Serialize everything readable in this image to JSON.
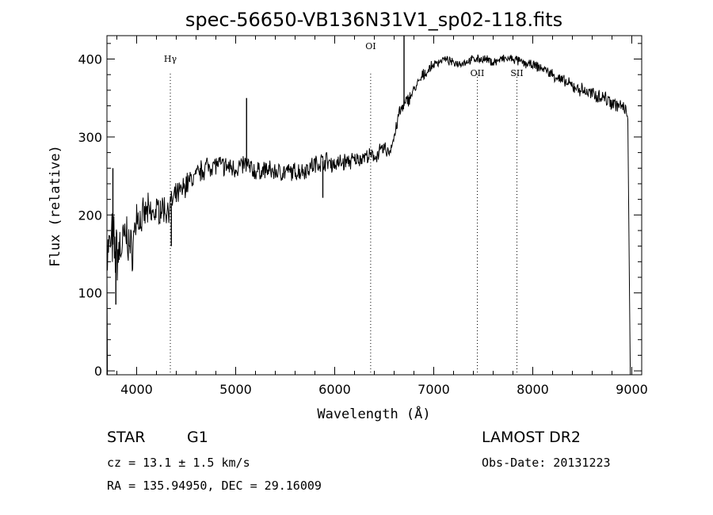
{
  "chart_data": {
    "type": "line",
    "title": "spec-56650-VB136N31V1_sp02-118.fits",
    "xlabel": "Wavelength (Å)",
    "ylabel": "Flux (relative)",
    "xlim": [
      3700,
      9100
    ],
    "ylim": [
      -5,
      430
    ],
    "xticks": [
      4000,
      5000,
      6000,
      7000,
      8000,
      9000
    ],
    "yticks": [
      0,
      100,
      200,
      300,
      400
    ],
    "series": [
      {
        "x": [
          3700,
          3750,
          3800,
          3850,
          3900,
          3950,
          4000,
          4050,
          4100,
          4150,
          4200,
          4250,
          4300,
          4350,
          4400,
          4450,
          4500,
          4600,
          4700,
          4800,
          4900,
          5000,
          5100,
          5200,
          5300,
          5400,
          5500,
          5600,
          5700,
          5800,
          5900,
          6000,
          6100,
          6200,
          6300,
          6400,
          6450,
          6500,
          6550,
          6600,
          6650,
          6700,
          6800,
          6900,
          7000,
          7100,
          7200,
          7300,
          7400,
          7500,
          7600,
          7700,
          7800,
          7900,
          8000,
          8100,
          8200,
          8300,
          8400,
          8500,
          8600,
          8700,
          8800,
          8900,
          8960
        ],
        "y": [
          150,
          165,
          150,
          160,
          175,
          150,
          200,
          190,
          205,
          200,
          205,
          210,
          205,
          215,
          225,
          230,
          240,
          250,
          262,
          265,
          262,
          260,
          265,
          255,
          258,
          255,
          255,
          255,
          258,
          265,
          270,
          265,
          268,
          270,
          275,
          275,
          280,
          285,
          280,
          300,
          330,
          340,
          360,
          380,
          393,
          400,
          395,
          395,
          400,
          400,
          396,
          400,
          400,
          395,
          392,
          388,
          380,
          372,
          365,
          360,
          355,
          352,
          345,
          338,
          330
        ],
        "noise": [
          40,
          40,
          40,
          35,
          30,
          28,
          25,
          25,
          22,
          20,
          18,
          18,
          18,
          16,
          15,
          15,
          15,
          14,
          14,
          13,
          13,
          13,
          13,
          12,
          12,
          12,
          12,
          12,
          12,
          12,
          12,
          12,
          12,
          10,
          10,
          10,
          10,
          10,
          10,
          10,
          10,
          10,
          8,
          8,
          6,
          5,
          5,
          5,
          5,
          6,
          6,
          6,
          6,
          6,
          6,
          7,
          7,
          8,
          8,
          9,
          9,
          10,
          10,
          10,
          10
        ]
      }
    ],
    "spikes": [
      {
        "x": 3760,
        "y": 260
      },
      {
        "x": 3790,
        "y": 85
      },
      {
        "x": 4350,
        "y": 160
      },
      {
        "x": 5110,
        "y": 350
      },
      {
        "x": 5880,
        "y": 222
      },
      {
        "x": 6700,
        "y": 430
      }
    ],
    "edge_drops": [
      3705,
      8985
    ],
    "spectral_lines": [
      {
        "label": "Hγ",
        "x": 4340
      },
      {
        "label": "OI",
        "x": 6363
      },
      {
        "label": "OII",
        "x": 7440
      },
      {
        "label": "SII",
        "x": 7840
      }
    ]
  },
  "info": {
    "object_class": "STAR",
    "subclass": "G1",
    "survey": "LAMOST DR2",
    "cz": "cz = 13.1 ± 1.5 km/s",
    "obs_date": "Obs-Date: 20131223",
    "coords": "RA = 135.94950, DEC =  29.16009"
  }
}
